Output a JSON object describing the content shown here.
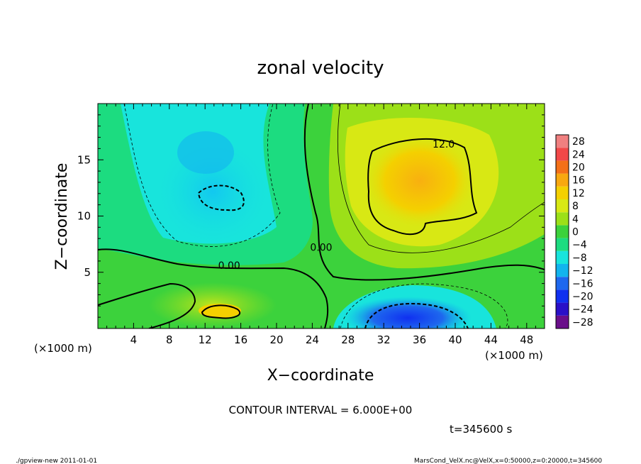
{
  "chart_data": {
    "type": "heatmap",
    "title": "zonal velocity",
    "xlabel": "X−coordinate",
    "ylabel": "Z−coordinate",
    "x_unit_label": "(×1000 m)",
    "y_unit_label": "(×1000 m)",
    "xlim": [
      0,
      50
    ],
    "ylim": [
      0,
      20
    ],
    "x_ticks": [
      4,
      8,
      12,
      16,
      20,
      24,
      28,
      32,
      36,
      40,
      44,
      48
    ],
    "y_ticks": [
      5,
      10,
      15
    ],
    "colorbar": {
      "levels": [
        -28,
        -24,
        -20,
        -16,
        -12,
        -8,
        -4,
        0,
        4,
        8,
        12,
        16,
        20,
        24,
        28
      ],
      "labels": [
        "28",
        "24",
        "20",
        "16",
        "12",
        "8",
        "4",
        "0",
        "−4",
        "−8",
        "−12",
        "−16",
        "−20",
        "−24",
        "−28"
      ],
      "colors": [
        "#6a0f8a",
        "#2a10c8",
        "#1030f0",
        "#1e68ee",
        "#12b4ee",
        "#18e4dc",
        "#1cdc80",
        "#3cd23c",
        "#9ce018",
        "#d8e814",
        "#f4d000",
        "#f8a810",
        "#f47018",
        "#f24848",
        "#f08080"
      ]
    },
    "contour_labels": [
      {
        "text": "12.0",
        "x": 38.7,
        "y": 16.1
      },
      {
        "text": "0.00",
        "x": 14.7,
        "y": 5.3
      },
      {
        "text": "0.00",
        "x": 25.0,
        "y": 6.9
      }
    ],
    "contour_interval_text": "CONTOUR INTERVAL = 6.000E+00",
    "time_text": "t=345600 s"
  },
  "footer": {
    "left": "./gpview-new   2011-01-01",
    "right": "MarsCond_VelX.nc@VelX,x=0:50000,z=0:20000,t=345600"
  }
}
